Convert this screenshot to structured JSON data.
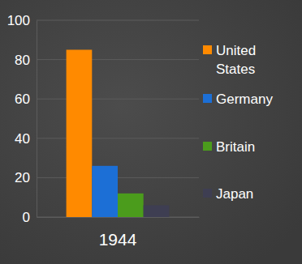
{
  "chart_data": {
    "type": "bar",
    "categories": [
      "1944"
    ],
    "series": [
      {
        "name": "United States",
        "color": "#ff8a00",
        "values": [
          85
        ]
      },
      {
        "name": "Germany",
        "color": "#1c6fd6",
        "values": [
          26
        ]
      },
      {
        "name": "Britain",
        "color": "#4b9c1c",
        "values": [
          12
        ]
      },
      {
        "name": "Japan",
        "color": "#3e3e52",
        "values": [
          6
        ]
      }
    ],
    "ylim": [
      0,
      100
    ],
    "yticks": [
      0,
      20,
      40,
      60,
      80,
      100
    ],
    "grid": true,
    "legend": "right"
  }
}
